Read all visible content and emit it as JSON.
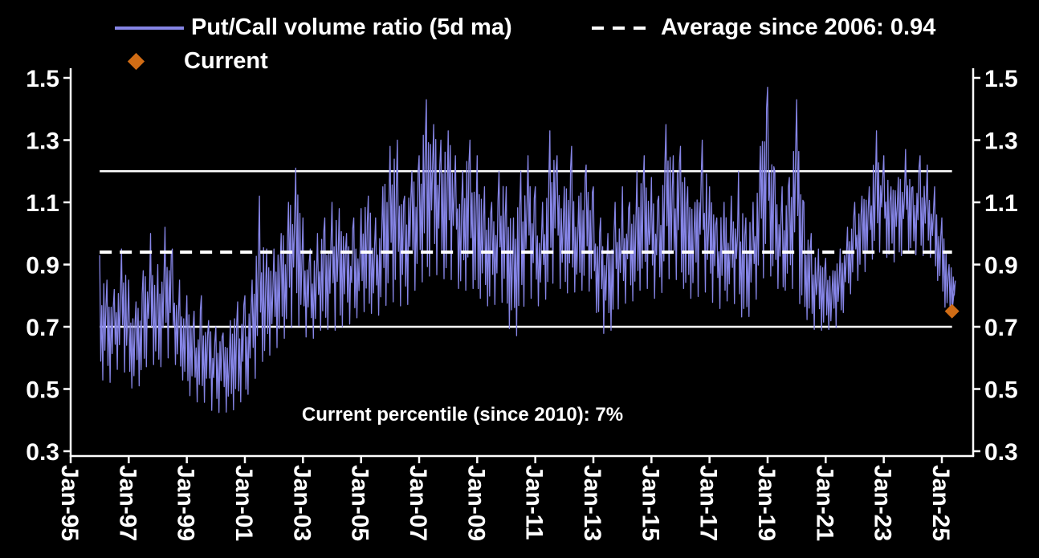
{
  "legend": {
    "series_label": "Put/Call volume ratio (5d ma)",
    "average_label": "Average since 2006: 0.94",
    "current_label": "Current"
  },
  "chart_data": {
    "type": "line",
    "title": "Put/Call volume ratio (5d ma)",
    "background_color": "#000000",
    "text_color": "#ffffff",
    "legend": [
      {
        "label": "Put/Call volume ratio (5d ma)",
        "marker": "line",
        "color": "#8685e6"
      },
      {
        "label": "Average since 2006: 0.94",
        "marker": "dashed-line",
        "color": "#ffffff"
      },
      {
        "label": "Current",
        "marker": "diamond",
        "color": "#d06c15"
      }
    ],
    "x_axis": {
      "ticks": [
        1995,
        1997,
        1999,
        2001,
        2003,
        2005,
        2007,
        2009,
        2011,
        2013,
        2015,
        2017,
        2019,
        2021,
        2023,
        2025
      ],
      "tick_labels": [
        "Jan-95",
        "Jan-97",
        "Jan-99",
        "Jan-01",
        "Jan-03",
        "Jan-05",
        "Jan-07",
        "Jan-09",
        "Jan-11",
        "Jan-13",
        "Jan-15",
        "Jan-17",
        "Jan-19",
        "Jan-21",
        "Jan-23",
        "Jan-25"
      ],
      "range": [
        1995,
        2026.1
      ]
    },
    "y_axis": {
      "ticks": [
        0.3,
        0.5,
        0.7,
        0.9,
        1.1,
        1.3,
        1.5
      ],
      "tick_labels": [
        "0.3",
        "0.5",
        "0.7",
        "0.9",
        "1.1",
        "1.3",
        "1.5"
      ],
      "range": [
        0.3,
        1.55
      ],
      "sides": "both"
    },
    "grid": "off",
    "legend_position": "top",
    "reference_lines": [
      {
        "value": 1.2,
        "style": "solid",
        "color": "#ffffff"
      },
      {
        "value": 0.7,
        "style": "solid",
        "color": "#ffffff"
      },
      {
        "value": 0.94,
        "style": "dashed",
        "color": "#ffffff",
        "label": "Average since 2006: 0.94"
      }
    ],
    "average_since_2006": 0.94,
    "current": {
      "t": 2025.35,
      "value": 0.75,
      "label": "Current"
    },
    "current_percentile_since_2010": "7%",
    "annotations": [
      {
        "text": "Current percentile (since 2010): 7%",
        "x": 2008.6,
        "y": 0.44
      }
    ],
    "data_start": 1996.0,
    "data_end": 2025.35,
    "series_band_quarterly": {
      "description": "Quarterly envelope (min,max) read from the noisy 5-day moving-average line",
      "columns": [
        "year_fraction",
        "min",
        "max"
      ],
      "rows": [
        [
          1996.0,
          0.55,
          0.93
        ],
        [
          1996.25,
          0.5,
          0.85
        ],
        [
          1996.5,
          0.55,
          0.82
        ],
        [
          1996.75,
          0.58,
          0.95
        ],
        [
          1997.0,
          0.52,
          0.85
        ],
        [
          1997.25,
          0.48,
          0.78
        ],
        [
          1997.5,
          0.55,
          0.88
        ],
        [
          1997.75,
          0.6,
          1.0
        ],
        [
          1998.0,
          0.55,
          0.9
        ],
        [
          1998.25,
          0.6,
          1.02
        ],
        [
          1998.5,
          0.6,
          0.95
        ],
        [
          1998.75,
          0.55,
          0.85
        ],
        [
          1999.0,
          0.5,
          0.8
        ],
        [
          1999.25,
          0.45,
          0.75
        ],
        [
          1999.5,
          0.47,
          0.8
        ],
        [
          1999.75,
          0.44,
          0.72
        ],
        [
          2000.0,
          0.42,
          0.7
        ],
        [
          2000.25,
          0.43,
          0.68
        ],
        [
          2000.5,
          0.42,
          0.72
        ],
        [
          2000.75,
          0.45,
          0.78
        ],
        [
          2001.0,
          0.47,
          0.8
        ],
        [
          2001.25,
          0.5,
          0.85
        ],
        [
          2001.5,
          0.58,
          1.12
        ],
        [
          2001.75,
          0.6,
          0.95
        ],
        [
          2002.0,
          0.62,
          0.95
        ],
        [
          2002.25,
          0.65,
          1.0
        ],
        [
          2002.5,
          0.68,
          1.1
        ],
        [
          2002.75,
          0.72,
          1.21
        ],
        [
          2003.0,
          0.68,
          1.05
        ],
        [
          2003.25,
          0.65,
          0.95
        ],
        [
          2003.5,
          0.68,
          1.0
        ],
        [
          2003.75,
          0.7,
          1.05
        ],
        [
          2004.0,
          0.68,
          1.1
        ],
        [
          2004.25,
          0.7,
          1.08
        ],
        [
          2004.5,
          0.7,
          1.0
        ],
        [
          2004.75,
          0.72,
          1.05
        ],
        [
          2005.0,
          0.74,
          1.08
        ],
        [
          2005.25,
          0.76,
          1.12
        ],
        [
          2005.5,
          0.72,
          1.05
        ],
        [
          2005.75,
          0.76,
          1.15
        ],
        [
          2006.0,
          0.78,
          1.28
        ],
        [
          2006.25,
          0.78,
          1.3
        ],
        [
          2006.5,
          0.75,
          1.12
        ],
        [
          2006.75,
          0.8,
          1.2
        ],
        [
          2007.0,
          0.84,
          1.25
        ],
        [
          2007.25,
          0.85,
          1.43
        ],
        [
          2007.5,
          0.88,
          1.35
        ],
        [
          2007.75,
          0.85,
          1.3
        ],
        [
          2008.0,
          0.86,
          1.33
        ],
        [
          2008.25,
          0.84,
          1.25
        ],
        [
          2008.5,
          0.8,
          1.2
        ],
        [
          2008.75,
          0.84,
          1.3
        ],
        [
          2009.0,
          0.8,
          1.25
        ],
        [
          2009.25,
          0.78,
          1.15
        ],
        [
          2009.5,
          0.75,
          1.1
        ],
        [
          2009.75,
          0.8,
          1.2
        ],
        [
          2010.0,
          0.75,
          1.15
        ],
        [
          2010.25,
          0.62,
          1.05
        ],
        [
          2010.5,
          0.74,
          1.2
        ],
        [
          2010.75,
          0.8,
          1.25
        ],
        [
          2011.0,
          0.78,
          1.15
        ],
        [
          2011.25,
          0.75,
          1.1
        ],
        [
          2011.5,
          0.84,
          1.33
        ],
        [
          2011.75,
          0.84,
          1.25
        ],
        [
          2012.0,
          0.8,
          1.15
        ],
        [
          2012.25,
          0.82,
          1.28
        ],
        [
          2012.5,
          0.8,
          1.12
        ],
        [
          2012.75,
          0.84,
          1.22
        ],
        [
          2013.0,
          0.78,
          1.15
        ],
        [
          2013.25,
          0.7,
          1.05
        ],
        [
          2013.5,
          0.65,
          1.0
        ],
        [
          2013.75,
          0.74,
          1.1
        ],
        [
          2014.0,
          0.78,
          1.15
        ],
        [
          2014.25,
          0.77,
          1.1
        ],
        [
          2014.5,
          0.8,
          1.2
        ],
        [
          2014.75,
          0.84,
          1.25
        ],
        [
          2015.0,
          0.8,
          1.18
        ],
        [
          2015.25,
          0.78,
          1.12
        ],
        [
          2015.5,
          0.85,
          1.35
        ],
        [
          2015.75,
          0.86,
          1.25
        ],
        [
          2016.0,
          0.84,
          1.28
        ],
        [
          2016.25,
          0.8,
          1.15
        ],
        [
          2016.5,
          0.78,
          1.1
        ],
        [
          2016.75,
          0.82,
          1.3
        ],
        [
          2017.0,
          0.8,
          1.15
        ],
        [
          2017.25,
          0.75,
          1.05
        ],
        [
          2017.5,
          0.77,
          1.1
        ],
        [
          2017.75,
          0.8,
          1.12
        ],
        [
          2018.0,
          0.74,
          1.2
        ],
        [
          2018.25,
          0.72,
          1.05
        ],
        [
          2018.5,
          0.75,
          1.1
        ],
        [
          2018.75,
          0.84,
          1.28
        ],
        [
          2019.0,
          0.88,
          1.47
        ],
        [
          2019.25,
          0.84,
          1.2
        ],
        [
          2019.5,
          0.8,
          1.15
        ],
        [
          2019.75,
          0.84,
          1.18
        ],
        [
          2020.0,
          0.8,
          1.43
        ],
        [
          2020.25,
          0.74,
          1.1
        ],
        [
          2020.5,
          0.7,
          1.0
        ],
        [
          2020.75,
          0.68,
          0.95
        ],
        [
          2021.0,
          0.7,
          0.92
        ],
        [
          2021.25,
          0.68,
          0.88
        ],
        [
          2021.5,
          0.72,
          0.95
        ],
        [
          2021.75,
          0.78,
          1.02
        ],
        [
          2022.0,
          0.84,
          1.1
        ],
        [
          2022.25,
          0.86,
          1.12
        ],
        [
          2022.5,
          0.9,
          1.15
        ],
        [
          2022.75,
          0.94,
          1.33
        ],
        [
          2023.0,
          0.94,
          1.25
        ],
        [
          2023.25,
          0.9,
          1.15
        ],
        [
          2023.5,
          0.92,
          1.18
        ],
        [
          2023.75,
          0.94,
          1.27
        ],
        [
          2024.0,
          0.94,
          1.15
        ],
        [
          2024.25,
          0.92,
          1.25
        ],
        [
          2024.5,
          0.94,
          1.22
        ],
        [
          2024.75,
          0.9,
          1.15
        ],
        [
          2025.0,
          0.78,
          1.05
        ],
        [
          2025.25,
          0.74,
          0.9
        ]
      ]
    }
  }
}
